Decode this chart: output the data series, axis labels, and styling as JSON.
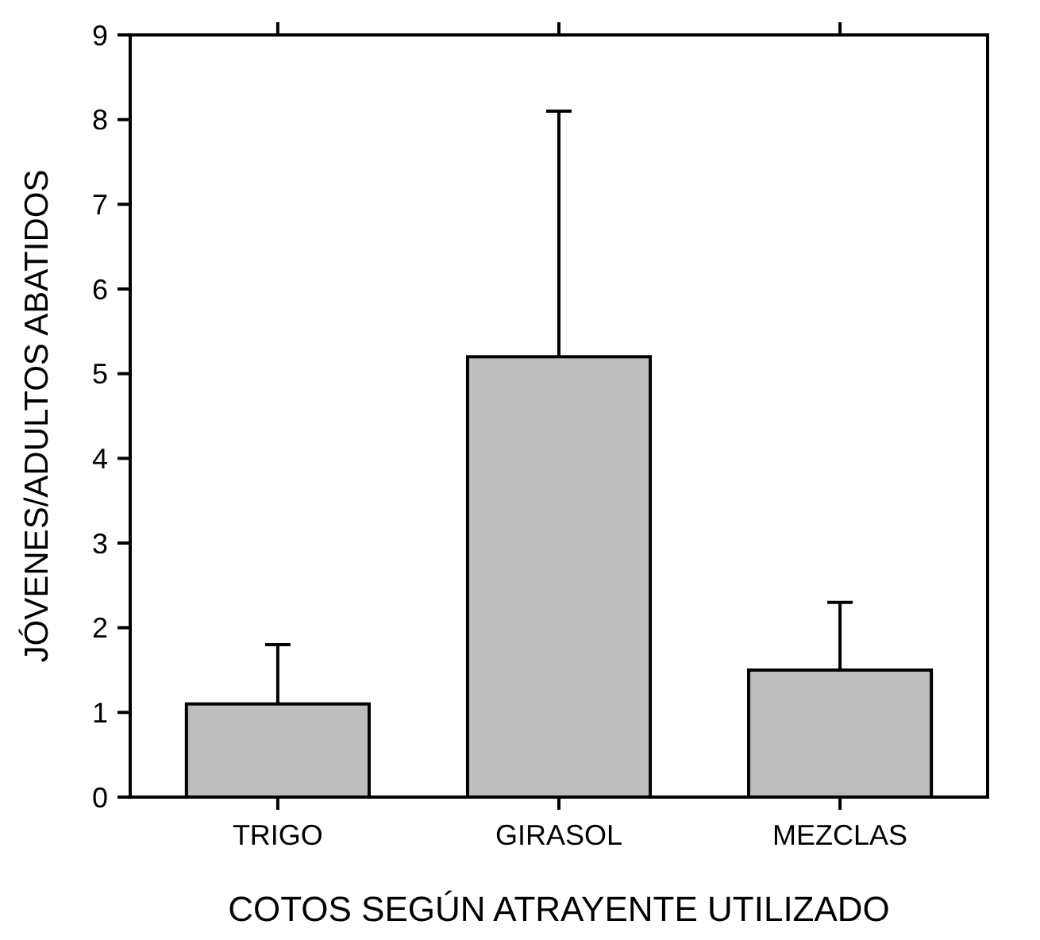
{
  "chart_data": {
    "type": "bar",
    "xlabel": "COTOS SEGÚN ATRAYENTE UTILIZADO",
    "ylabel": "JÓVENES/ADULTOS ABATIDOS",
    "categories": [
      "TRIGO",
      "GIRASOL",
      "MEZCLAS"
    ],
    "values": [
      1.1,
      5.2,
      1.5
    ],
    "color": "#bdbdbd",
    "errors": [
      [
        1.1,
        1.8
      ],
      [
        5.2,
        8.1
      ],
      [
        1.5,
        2.3
      ]
    ],
    "ylim": [
      0,
      9
    ],
    "yticks": [
      0,
      1,
      2,
      3,
      4,
      5,
      6,
      7,
      8,
      9
    ],
    "grid": false
  }
}
